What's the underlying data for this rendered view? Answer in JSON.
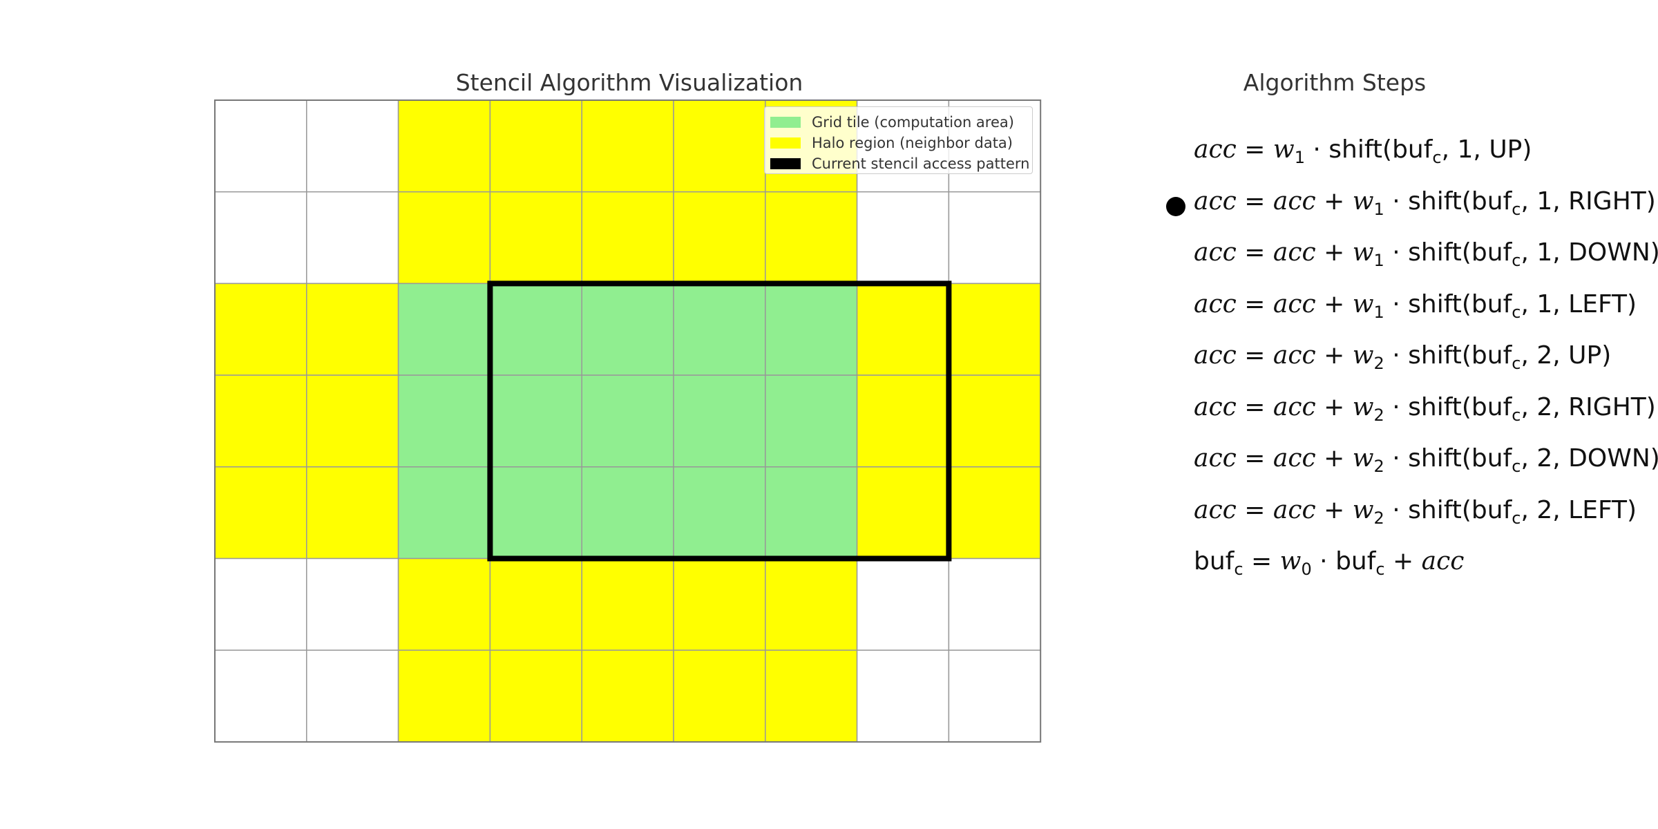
{
  "visualization": {
    "title": "Stencil Algorithm Visualization",
    "grid": {
      "rows": 7,
      "cols": 9,
      "cells": [
        [
          "empty",
          "empty",
          "halo",
          "halo",
          "halo",
          "halo",
          "halo",
          "empty",
          "empty"
        ],
        [
          "empty",
          "empty",
          "halo",
          "halo",
          "halo",
          "halo",
          "halo",
          "empty",
          "empty"
        ],
        [
          "halo",
          "halo",
          "tile",
          "tile",
          "tile",
          "tile",
          "tile",
          "halo",
          "halo"
        ],
        [
          "halo",
          "halo",
          "tile",
          "tile",
          "tile",
          "tile",
          "tile",
          "halo",
          "halo"
        ],
        [
          "halo",
          "halo",
          "tile",
          "tile",
          "tile",
          "tile",
          "tile",
          "halo",
          "halo"
        ],
        [
          "empty",
          "empty",
          "halo",
          "halo",
          "halo",
          "halo",
          "halo",
          "empty",
          "empty"
        ],
        [
          "empty",
          "empty",
          "halo",
          "halo",
          "halo",
          "halo",
          "halo",
          "empty",
          "empty"
        ]
      ],
      "stencil_window": {
        "row_start": 2,
        "col_start": 3,
        "rows": 3,
        "cols": 5
      }
    },
    "colors": {
      "tile": "#90ee90",
      "halo": "#ffff00",
      "empty": "#ffffff",
      "gridline": "#999999",
      "stencil": "#000000"
    },
    "legend": [
      {
        "label": "Grid tile (computation area)",
        "color": "#90ee90"
      },
      {
        "label": "Halo region (neighbor data)",
        "color": "#ffff00"
      },
      {
        "label": "Current stencil access pattern",
        "color": "#000000"
      }
    ]
  },
  "steps_panel": {
    "title": "Algorithm Steps",
    "current_step": 1,
    "steps": [
      {
        "lhs": "acc",
        "prefix": "",
        "w": "w",
        "w_sub": "1",
        "n": "1",
        "dir": "UP"
      },
      {
        "lhs": "acc",
        "prefix": "acc + ",
        "w": "w",
        "w_sub": "1",
        "n": "1",
        "dir": "RIGHT"
      },
      {
        "lhs": "acc",
        "prefix": "acc + ",
        "w": "w",
        "w_sub": "1",
        "n": "1",
        "dir": "DOWN"
      },
      {
        "lhs": "acc",
        "prefix": "acc + ",
        "w": "w",
        "w_sub": "1",
        "n": "1",
        "dir": "LEFT"
      },
      {
        "lhs": "acc",
        "prefix": "acc + ",
        "w": "w",
        "w_sub": "2",
        "n": "2",
        "dir": "UP"
      },
      {
        "lhs": "acc",
        "prefix": "acc + ",
        "w": "w",
        "w_sub": "2",
        "n": "2",
        "dir": "RIGHT"
      },
      {
        "lhs": "acc",
        "prefix": "acc + ",
        "w": "w",
        "w_sub": "2",
        "n": "2",
        "dir": "DOWN"
      },
      {
        "lhs": "acc",
        "prefix": "acc + ",
        "w": "w",
        "w_sub": "2",
        "n": "2",
        "dir": "LEFT"
      }
    ],
    "final_step": {
      "buf": "buf",
      "buf_sub": "c",
      "w": "w",
      "w_sub": "0",
      "acc": "acc"
    }
  }
}
